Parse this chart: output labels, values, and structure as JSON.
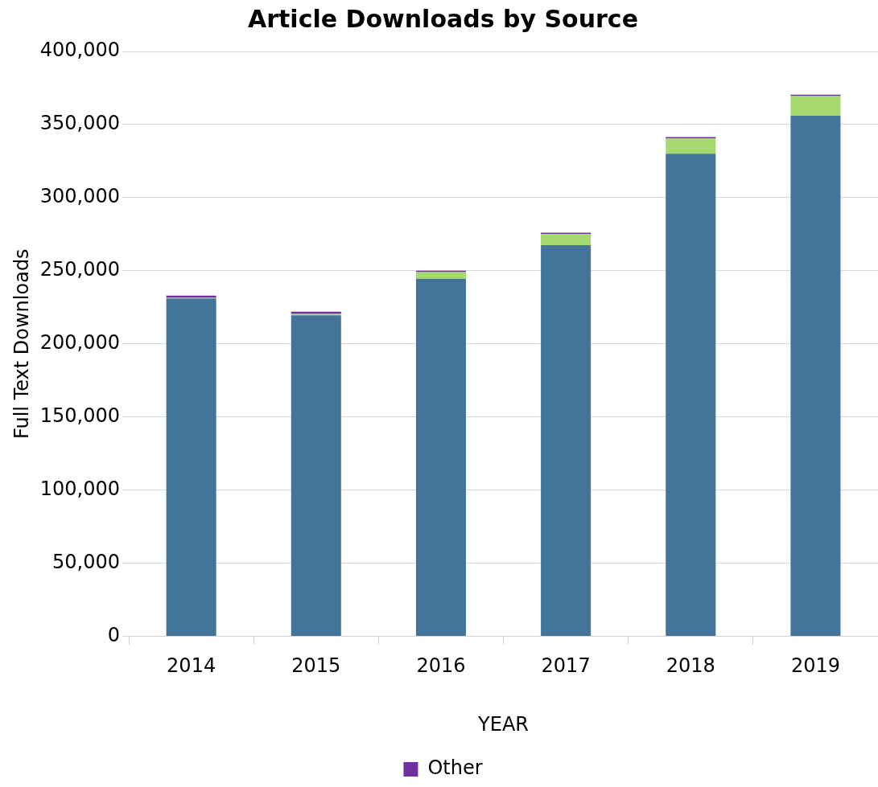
{
  "chart_data": {
    "type": "bar",
    "title": "Article Downloads by Source",
    "xlabel": "YEAR",
    "ylabel": "Full Text Downloads",
    "categories": [
      "2014",
      "2015",
      "2016",
      "2017",
      "2018",
      "2019"
    ],
    "stacked": true,
    "grid": "y",
    "legend": "bottom",
    "ylim": [
      0,
      400000
    ],
    "yticks": [
      0,
      {
        "value": 50000,
        "label": "50,000"
      },
      {
        "value": 100000,
        "label": "100,000"
      },
      {
        "value": 150000,
        "label": "150,000"
      },
      {
        "value": 200000,
        "label": "200,000"
      },
      {
        "value": 250000,
        "label": "250,000"
      },
      {
        "value": 300000,
        "label": "300,000"
      },
      {
        "value": 350000,
        "label": "350,000"
      },
      {
        "value": 400000,
        "label": "400,000"
      }
    ],
    "series": [
      {
        "color": "#427599",
        "values": [
          231000,
          219500,
          244500,
          267500,
          330000,
          356000
        ]
      },
      {
        "color": "#a6d96e",
        "values": [
          500,
          1000,
          4500,
          7500,
          10500,
          13500
        ]
      },
      {
        "name": "Other",
        "color": "#7030a0",
        "values": [
          1500,
          1500,
          1000,
          1000,
          1000,
          1000
        ]
      }
    ]
  }
}
